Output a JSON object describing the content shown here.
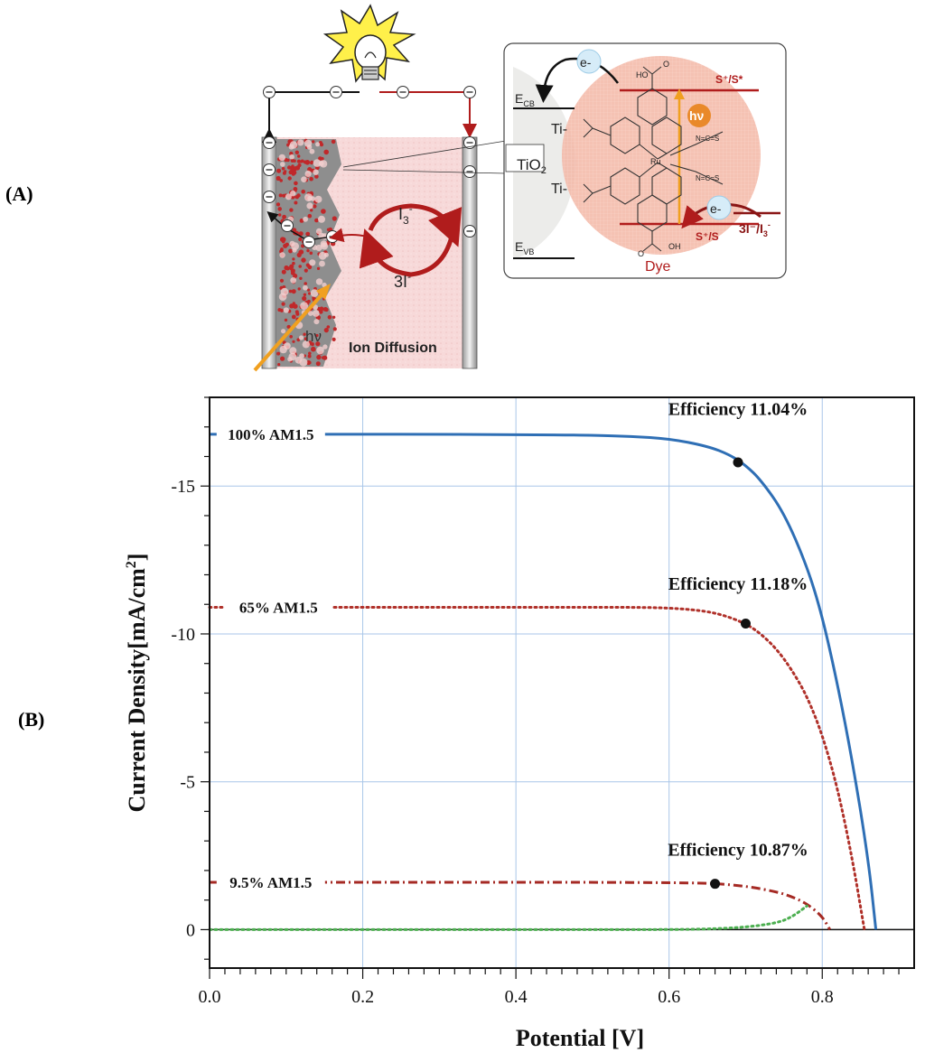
{
  "panel_a": {
    "label": "(A)",
    "tio2": "TiO",
    "tio2_sub": "2",
    "ecb": "E",
    "ecb_sub": "CB",
    "evb": "E",
    "evb_sub": "VB",
    "ti_top": "Ti-",
    "ti_bottom": "Ti-",
    "electron": "e-",
    "electron2": "e-",
    "excited_state": "S⁺/S*",
    "ground_state": "S⁺/S",
    "redox": "3I⁻/I",
    "redox_sub": "3",
    "redox_sup": "-",
    "hv": "hν",
    "dye": "Dye",
    "i3": "I",
    "i3_sub": "3",
    "i3_sup": "-",
    "three_i": "3I",
    "three_i_sup": "-",
    "cell_hv": "hν",
    "ion_diffusion": "Ion Diffusion",
    "ru": "Ru",
    "ho_top": "HO",
    "o_top": "O",
    "oh_bottom": "OH",
    "o_bottom": "O",
    "n_cs_top": "N=C=S",
    "n_cs_bottom": "N=C=S",
    "minus": "⊖",
    "colors": {
      "red": "#b01c1c",
      "orange": "#f0a020",
      "cell_pink": "#f6d6d6",
      "gray": "#8c8c8c"
    }
  },
  "panel_b": {
    "label": "(B)",
    "chart_data": {
      "type": "line",
      "xlabel": "Potential [V]",
      "ylabel": "Current Density[mA/cm",
      "ylabel_sup": "2",
      "ylabel_end": "]",
      "xlim": [
        0,
        0.9
      ],
      "ylim": [
        -18,
        1
      ],
      "xticks": [
        0.0,
        0.2,
        0.4,
        0.6,
        0.8
      ],
      "xtick_labels": [
        "0.0",
        "0.2",
        "0.4",
        "0.6",
        "0.8"
      ],
      "yticks": [
        -15,
        -10,
        -5,
        0
      ],
      "ytick_labels": [
        "-15",
        "-10",
        "-5",
        "0"
      ],
      "grid": true,
      "series": [
        {
          "name": "100% AM1.5",
          "color": "#2f6fb5",
          "style": "solid",
          "x": [
            0,
            0.1,
            0.2,
            0.3,
            0.4,
            0.5,
            0.55,
            0.6,
            0.65,
            0.68,
            0.7,
            0.72,
            0.75,
            0.78,
            0.8,
            0.82,
            0.84,
            0.86,
            0.87
          ],
          "y": [
            -16.75,
            -16.75,
            -16.75,
            -16.75,
            -16.74,
            -16.72,
            -16.68,
            -16.6,
            -16.35,
            -16.05,
            -15.7,
            -15.2,
            -14.1,
            -12.3,
            -10.6,
            -8.3,
            -5.6,
            -2.4,
            0
          ]
        },
        {
          "name": "65% AM1.5",
          "color": "#b0312a",
          "style": "dotted",
          "x": [
            0,
            0.1,
            0.2,
            0.3,
            0.4,
            0.5,
            0.55,
            0.6,
            0.64,
            0.67,
            0.7,
            0.72,
            0.74,
            0.76,
            0.78,
            0.8,
            0.82,
            0.84,
            0.855
          ],
          "y": [
            -10.9,
            -10.9,
            -10.9,
            -10.9,
            -10.9,
            -10.9,
            -10.9,
            -10.88,
            -10.8,
            -10.65,
            -10.35,
            -10.0,
            -9.5,
            -8.8,
            -7.9,
            -6.6,
            -4.8,
            -2.3,
            0
          ]
        },
        {
          "name": "9.5% AM1.5",
          "color": "#a52a24",
          "style": "dashdot",
          "x": [
            0,
            0.1,
            0.2,
            0.3,
            0.4,
            0.5,
            0.6,
            0.65,
            0.68,
            0.71,
            0.74,
            0.76,
            0.78,
            0.8,
            0.81
          ],
          "y": [
            -1.6,
            -1.6,
            -1.6,
            -1.6,
            -1.6,
            -1.6,
            -1.59,
            -1.57,
            -1.52,
            -1.43,
            -1.28,
            -1.12,
            -0.88,
            -0.45,
            0
          ]
        },
        {
          "name": "",
          "color": "#4caf50",
          "style": "dotted",
          "x": [
            0,
            0.2,
            0.4,
            0.6,
            0.65,
            0.7,
            0.74,
            0.76,
            0.78
          ],
          "y": [
            0,
            0,
            0,
            0,
            -0.02,
            -0.08,
            -0.22,
            -0.42,
            -0.8
          ]
        }
      ],
      "max_power_points": [
        {
          "x": 0.69,
          "y": -15.8
        },
        {
          "x": 0.7,
          "y": -10.35
        },
        {
          "x": 0.66,
          "y": -1.55
        }
      ],
      "efficiency_labels": [
        "Efficiency 11.04%",
        "Efficiency 11.18%",
        "Efficiency 10.87%"
      ]
    }
  }
}
